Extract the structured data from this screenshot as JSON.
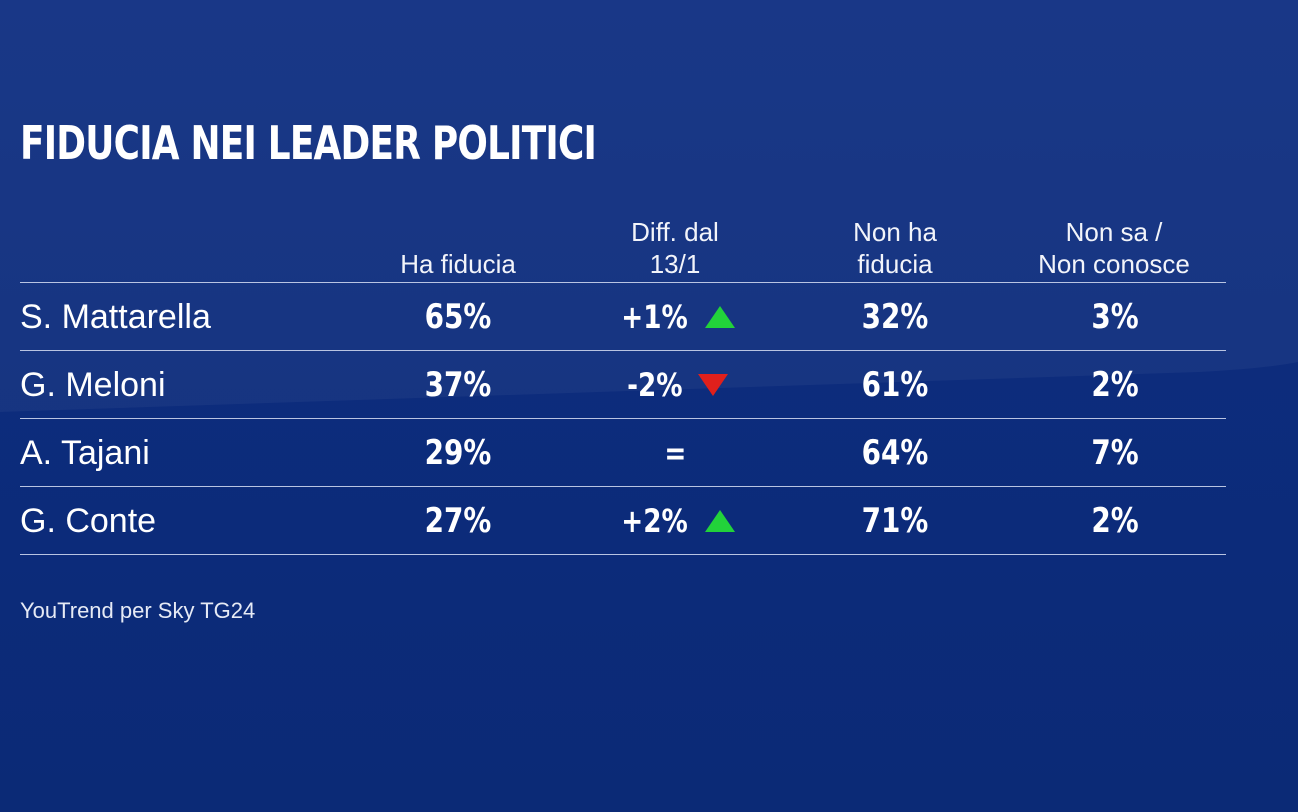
{
  "title": "FIDUCIA NEI LEADER POLITICI",
  "columns": [
    "Ha fiducia",
    "Diff. dal\n13/1",
    "Non ha\nfiducia",
    "Non sa /\nNon conosce"
  ],
  "source": "YouTrend per Sky TG24",
  "colors": {
    "background": "#0a2a78",
    "up": "#22d23a",
    "down": "#e0201c",
    "rule": "#b9c4e2"
  },
  "chart_data": {
    "type": "table",
    "title": "FIDUCIA NEI LEADER POLITICI",
    "columns": [
      "Ha fiducia",
      "Diff. dal 13/1",
      "Non ha fiducia",
      "Non sa / Non conosce"
    ],
    "rows": [
      {
        "name": "S. Mattarella",
        "ha_fiducia": "65%",
        "diff": "+1%",
        "trend": "up",
        "non_ha_fiducia": "32%",
        "non_sa": "3%"
      },
      {
        "name": "G. Meloni",
        "ha_fiducia": "37%",
        "diff": "-2%",
        "trend": "down",
        "non_ha_fiducia": "61%",
        "non_sa": "2%"
      },
      {
        "name": "A. Tajani",
        "ha_fiducia": "29%",
        "diff": "=",
        "trend": "same",
        "non_ha_fiducia": "64%",
        "non_sa": "7%"
      },
      {
        "name": "G. Conte",
        "ha_fiducia": "27%",
        "diff": "+2%",
        "trend": "up",
        "non_ha_fiducia": "71%",
        "non_sa": "2%"
      }
    ]
  }
}
